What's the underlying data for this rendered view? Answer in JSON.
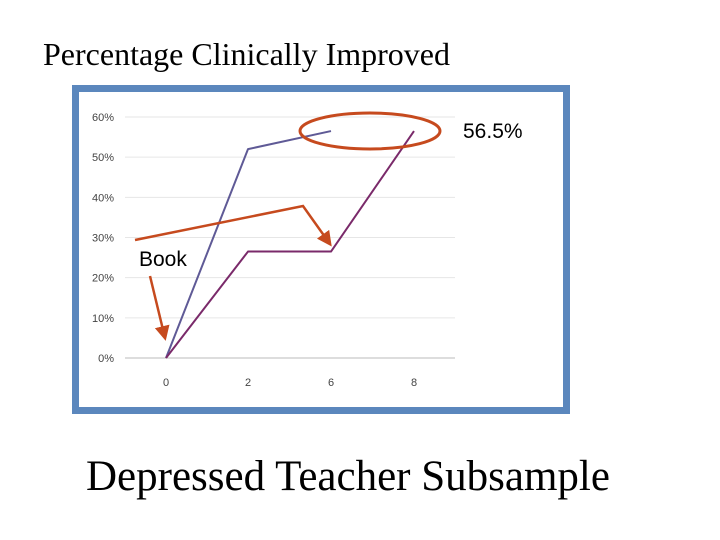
{
  "slide": {
    "title": "Percentage Clinically Improved",
    "caption": "Depressed Teacher Subsample"
  },
  "chart_data": {
    "type": "line",
    "x": [
      "0",
      "2",
      "6",
      "8"
    ],
    "yticks": [
      "0%",
      "10%",
      "20%",
      "30%",
      "40%",
      "50%",
      "60%"
    ],
    "ylim": [
      0,
      60
    ],
    "grid": true,
    "series": [
      {
        "color": "#5f5a96",
        "values": [
          0,
          52,
          56.5,
          null
        ]
      },
      {
        "color": "#7a2a6a",
        "values": [
          0,
          26.5,
          26.5,
          56.5
        ]
      }
    ],
    "annotations": {
      "highlight_value": "56.5%",
      "book_label": "Book"
    }
  },
  "colors": {
    "frame": "#5b87bd",
    "callout": "#c64a1e"
  }
}
